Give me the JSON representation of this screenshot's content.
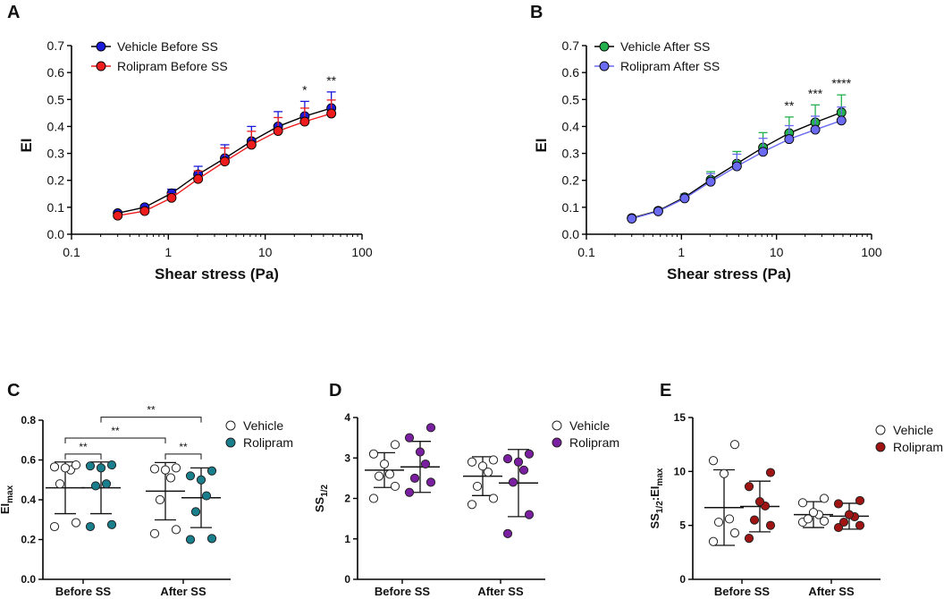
{
  "chart_data": [
    {
      "id": "A",
      "panel_label": "A",
      "type": "line",
      "xscale": "log",
      "xlabel": "Shear stress (Pa)",
      "ylabel": "EI",
      "xlim": [
        0.1,
        100
      ],
      "ylim": [
        0,
        0.7
      ],
      "xticks": [
        "0.1",
        "1",
        "10",
        "100"
      ],
      "yticks": [
        "0.0",
        "0.1",
        "0.2",
        "0.3",
        "0.4",
        "0.5",
        "0.6",
        "0.7"
      ],
      "x": [
        0.3,
        0.57,
        1.08,
        2.03,
        3.83,
        7.22,
        13.6,
        25.6,
        48.2
      ],
      "series": [
        {
          "name": "Vehicle Before SS",
          "color": "#1a1adb",
          "line": "#000000",
          "values": [
            0.078,
            0.1,
            0.152,
            0.222,
            0.282,
            0.345,
            0.4,
            0.438,
            0.468
          ],
          "errors": [
            0.007,
            0.008,
            0.015,
            0.03,
            0.05,
            0.055,
            0.055,
            0.055,
            0.06
          ]
        },
        {
          "name": "Rolipram Before SS",
          "color": "#ee1c1c",
          "line": "#ee1c1c",
          "values": [
            0.069,
            0.086,
            0.135,
            0.205,
            0.27,
            0.332,
            0.383,
            0.418,
            0.448
          ],
          "errors": [
            0.006,
            0.008,
            0.015,
            0.03,
            0.05,
            0.05,
            0.05,
            0.05,
            0.05
          ]
        }
      ],
      "annotations": [
        {
          "x": 25.6,
          "text": "*"
        },
        {
          "x": 48.2,
          "text": "**"
        }
      ]
    },
    {
      "id": "B",
      "panel_label": "B",
      "type": "line",
      "xscale": "log",
      "xlabel": "Shear stress (Pa)",
      "ylabel": "EI",
      "xlim": [
        0.1,
        100
      ],
      "ylim": [
        0,
        0.7
      ],
      "xticks": [
        "0.1",
        "1",
        "10",
        "100"
      ],
      "yticks": [
        "0.0",
        "0.1",
        "0.2",
        "0.3",
        "0.4",
        "0.5",
        "0.6",
        "0.7"
      ],
      "x": [
        0.3,
        0.57,
        1.08,
        2.03,
        3.83,
        7.22,
        13.6,
        25.6,
        48.2
      ],
      "series": [
        {
          "name": "Vehicle After SS",
          "color": "#22b14c",
          "line": "#000000",
          "values": [
            0.06,
            0.087,
            0.137,
            0.202,
            0.262,
            0.322,
            0.375,
            0.415,
            0.452
          ],
          "errors": [
            0.006,
            0.008,
            0.012,
            0.03,
            0.045,
            0.055,
            0.06,
            0.065,
            0.065
          ]
        },
        {
          "name": "Rolipram After SS",
          "color": "#6a6af2",
          "line": "#6a6af2",
          "values": [
            0.058,
            0.085,
            0.133,
            0.195,
            0.252,
            0.306,
            0.353,
            0.388,
            0.422
          ],
          "errors": [
            0.006,
            0.008,
            0.012,
            0.03,
            0.045,
            0.05,
            0.05,
            0.05,
            0.05
          ]
        }
      ],
      "annotations": [
        {
          "x": 13.6,
          "text": "**"
        },
        {
          "x": 25.6,
          "text": "***"
        },
        {
          "x": 48.2,
          "text": "****"
        }
      ]
    },
    {
      "id": "C",
      "panel_label": "C",
      "type": "scatter",
      "ylabel_main": "EI",
      "ylabel_sub": "max",
      "ylim": [
        0,
        0.8
      ],
      "yticks": [
        "0.0",
        "0.2",
        "0.4",
        "0.6",
        "0.8"
      ],
      "categories": [
        "Before SS",
        "After SS"
      ],
      "legend": [
        "Vehicle",
        "Rolipram"
      ],
      "fill_color": "#1a7f8c",
      "groups": [
        {
          "category": 0,
          "slot": 0,
          "filled": false,
          "mean": 0.46,
          "sd": 0.13,
          "values": [
            0.265,
            0.285,
            0.48,
            0.55,
            0.56,
            0.565,
            0.575
          ]
        },
        {
          "category": 0,
          "slot": 1,
          "filled": true,
          "mean": 0.46,
          "sd": 0.13,
          "values": [
            0.265,
            0.275,
            0.47,
            0.48,
            0.56,
            0.57,
            0.575
          ]
        },
        {
          "category": 1,
          "slot": 0,
          "filled": false,
          "mean": 0.443,
          "sd": 0.144,
          "values": [
            0.23,
            0.25,
            0.4,
            0.51,
            0.55,
            0.555,
            0.56
          ]
        },
        {
          "category": 1,
          "slot": 1,
          "filled": true,
          "mean": 0.41,
          "sd": 0.15,
          "values": [
            0.2,
            0.205,
            0.34,
            0.42,
            0.5,
            0.52,
            0.545
          ]
        }
      ],
      "brackets": [
        {
          "from": [
            0,
            0
          ],
          "to": [
            0,
            1
          ],
          "y": 0.63,
          "text": "**"
        },
        {
          "from": [
            0,
            0
          ],
          "to": [
            1,
            0
          ],
          "y": 0.71,
          "text": "**"
        },
        {
          "from": [
            0,
            1
          ],
          "to": [
            1,
            1
          ],
          "y": 0.815,
          "text": "**"
        },
        {
          "from": [
            1,
            0
          ],
          "to": [
            1,
            1
          ],
          "y": 0.63,
          "text": "**"
        }
      ]
    },
    {
      "id": "D",
      "panel_label": "D",
      "type": "scatter",
      "ylabel_main": "SS",
      "ylabel_sub": "1/2",
      "ylim": [
        0,
        4
      ],
      "yticks": [
        "0",
        "1",
        "2",
        "3",
        "4"
      ],
      "categories": [
        "Before SS",
        "After SS"
      ],
      "legend": [
        "Vehicle",
        "Rolipram"
      ],
      "fill_color": "#7b1fa2",
      "groups": [
        {
          "category": 0,
          "slot": 0,
          "filled": false,
          "mean": 2.7,
          "sd": 0.43,
          "values": [
            2.0,
            2.3,
            2.55,
            2.6,
            2.85,
            3.1,
            3.33
          ]
        },
        {
          "category": 0,
          "slot": 1,
          "filled": true,
          "mean": 2.78,
          "sd": 0.63,
          "values": [
            2.15,
            2.4,
            2.5,
            2.85,
            3.15,
            3.5,
            3.75
          ]
        },
        {
          "category": 1,
          "slot": 0,
          "filled": false,
          "mean": 2.55,
          "sd": 0.48,
          "values": [
            1.85,
            2.0,
            2.3,
            2.65,
            2.8,
            2.9,
            2.95
          ]
        },
        {
          "category": 1,
          "slot": 1,
          "filled": true,
          "mean": 2.38,
          "sd": 0.83,
          "values": [
            1.13,
            1.6,
            2.4,
            2.7,
            2.9,
            2.98,
            3.1
          ]
        }
      ]
    },
    {
      "id": "E",
      "panel_label": "E",
      "type": "scatter",
      "ylabel_main": "SS",
      "ylabel_sub": "1/2",
      "ylabel_main2": ":EI",
      "ylabel_sub2": "max",
      "ylim": [
        0,
        15
      ],
      "yticks": [
        "0",
        "5",
        "10",
        "15"
      ],
      "categories": [
        "Before SS",
        "After SS"
      ],
      "legend": [
        "Vehicle",
        "Rolipram"
      ],
      "fill_color": "#a01414",
      "groups": [
        {
          "category": 0,
          "slot": 0,
          "filled": false,
          "mean": 6.65,
          "sd": 3.5,
          "values": [
            3.5,
            4.3,
            5.3,
            5.6,
            9.8,
            11.0,
            12.5
          ]
        },
        {
          "category": 0,
          "slot": 1,
          "filled": true,
          "mean": 6.75,
          "sd": 2.35,
          "values": [
            3.8,
            5.0,
            5.5,
            6.8,
            7.2,
            8.6,
            9.9
          ]
        },
        {
          "category": 1,
          "slot": 0,
          "filled": false,
          "mean": 6.0,
          "sd": 1.2,
          "values": [
            5.3,
            5.4,
            5.6,
            6.0,
            6.2,
            7.1,
            7.5
          ]
        },
        {
          "category": 1,
          "slot": 1,
          "filled": true,
          "mean": 5.85,
          "sd": 1.2,
          "values": [
            4.8,
            5.0,
            5.3,
            5.8,
            6.0,
            7.0,
            7.3
          ]
        }
      ]
    }
  ]
}
